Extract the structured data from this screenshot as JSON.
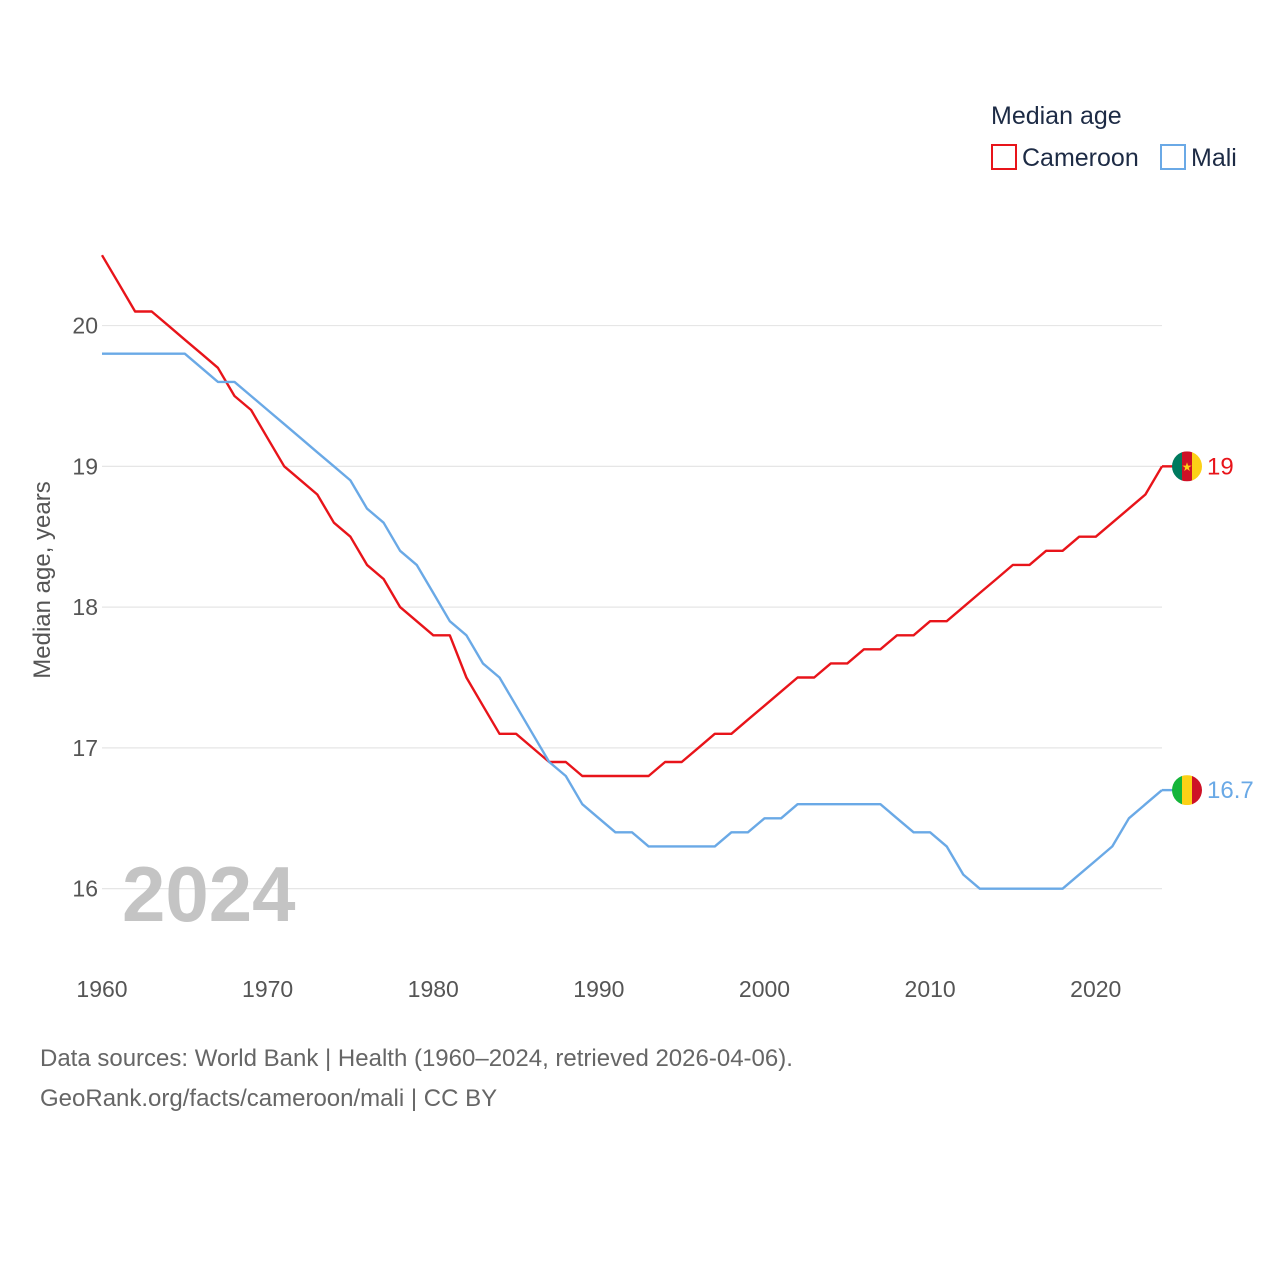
{
  "chart_data": {
    "type": "line",
    "title": "",
    "xlabel": "",
    "ylabel": "Median age, years",
    "xlim": [
      1960,
      2024
    ],
    "ylim": [
      15.55,
      20.75
    ],
    "yticks": [
      16,
      17,
      18,
      19,
      20
    ],
    "xticks": [
      1960,
      1970,
      1980,
      1990,
      2000,
      2010,
      2020
    ],
    "ytick_labels": [
      "16",
      "17",
      "18",
      "19",
      "20"
    ],
    "xtick_labels": [
      "1960",
      "1970",
      "1980",
      "1990",
      "2000",
      "2010",
      "2020"
    ],
    "grid": true,
    "year_label": "2024",
    "legend": {
      "title": "Median age",
      "position": "top-right"
    },
    "x": [
      1960,
      1961,
      1962,
      1963,
      1964,
      1965,
      1966,
      1967,
      1968,
      1969,
      1970,
      1971,
      1972,
      1973,
      1974,
      1975,
      1976,
      1977,
      1978,
      1979,
      1980,
      1981,
      1982,
      1983,
      1984,
      1985,
      1986,
      1987,
      1988,
      1989,
      1990,
      1991,
      1992,
      1993,
      1994,
      1995,
      1996,
      1997,
      1998,
      1999,
      2000,
      2001,
      2002,
      2003,
      2004,
      2005,
      2006,
      2007,
      2008,
      2009,
      2010,
      2011,
      2012,
      2013,
      2014,
      2015,
      2016,
      2017,
      2018,
      2019,
      2020,
      2021,
      2022,
      2023,
      2024
    ],
    "series": [
      {
        "name": "Cameroon",
        "color": "#e8141a",
        "end_label": "19",
        "flag": "cameroon-flag",
        "values": [
          20.5,
          20.3,
          20.1,
          20.1,
          20.0,
          19.9,
          19.8,
          19.7,
          19.5,
          19.4,
          19.2,
          19.0,
          18.9,
          18.8,
          18.6,
          18.5,
          18.3,
          18.2,
          18.0,
          17.9,
          17.8,
          17.8,
          17.5,
          17.3,
          17.1,
          17.1,
          17.0,
          16.9,
          16.9,
          16.8,
          16.8,
          16.8,
          16.8,
          16.8,
          16.9,
          16.9,
          17.0,
          17.1,
          17.1,
          17.2,
          17.3,
          17.4,
          17.5,
          17.5,
          17.6,
          17.6,
          17.7,
          17.7,
          17.8,
          17.8,
          17.9,
          17.9,
          18.0,
          18.1,
          18.2,
          18.3,
          18.3,
          18.4,
          18.4,
          18.5,
          18.5,
          18.6,
          18.7,
          18.8,
          19.0
        ]
      },
      {
        "name": "Mali",
        "color": "#6aa9e6",
        "end_label": "16.7",
        "flag": "mali-flag",
        "values": [
          19.8,
          19.8,
          19.8,
          19.8,
          19.8,
          19.8,
          19.7,
          19.6,
          19.6,
          19.5,
          19.4,
          19.3,
          19.2,
          19.1,
          19.0,
          18.9,
          18.7,
          18.6,
          18.4,
          18.3,
          18.1,
          17.9,
          17.8,
          17.6,
          17.5,
          17.3,
          17.1,
          16.9,
          16.8,
          16.6,
          16.5,
          16.4,
          16.4,
          16.3,
          16.3,
          16.3,
          16.3,
          16.3,
          16.4,
          16.4,
          16.5,
          16.5,
          16.6,
          16.6,
          16.6,
          16.6,
          16.6,
          16.6,
          16.5,
          16.4,
          16.4,
          16.3,
          16.1,
          16.0,
          16.0,
          16.0,
          16.0,
          16.0,
          16.0,
          16.1,
          16.2,
          16.3,
          16.5,
          16.6,
          16.7
        ]
      }
    ]
  },
  "footer": {
    "source": "Data sources: World Bank | Health (1960–2024, retrieved 2026-04-06).",
    "attribution": "GeoRank.org/facts/cameroon/mali | CC BY"
  }
}
